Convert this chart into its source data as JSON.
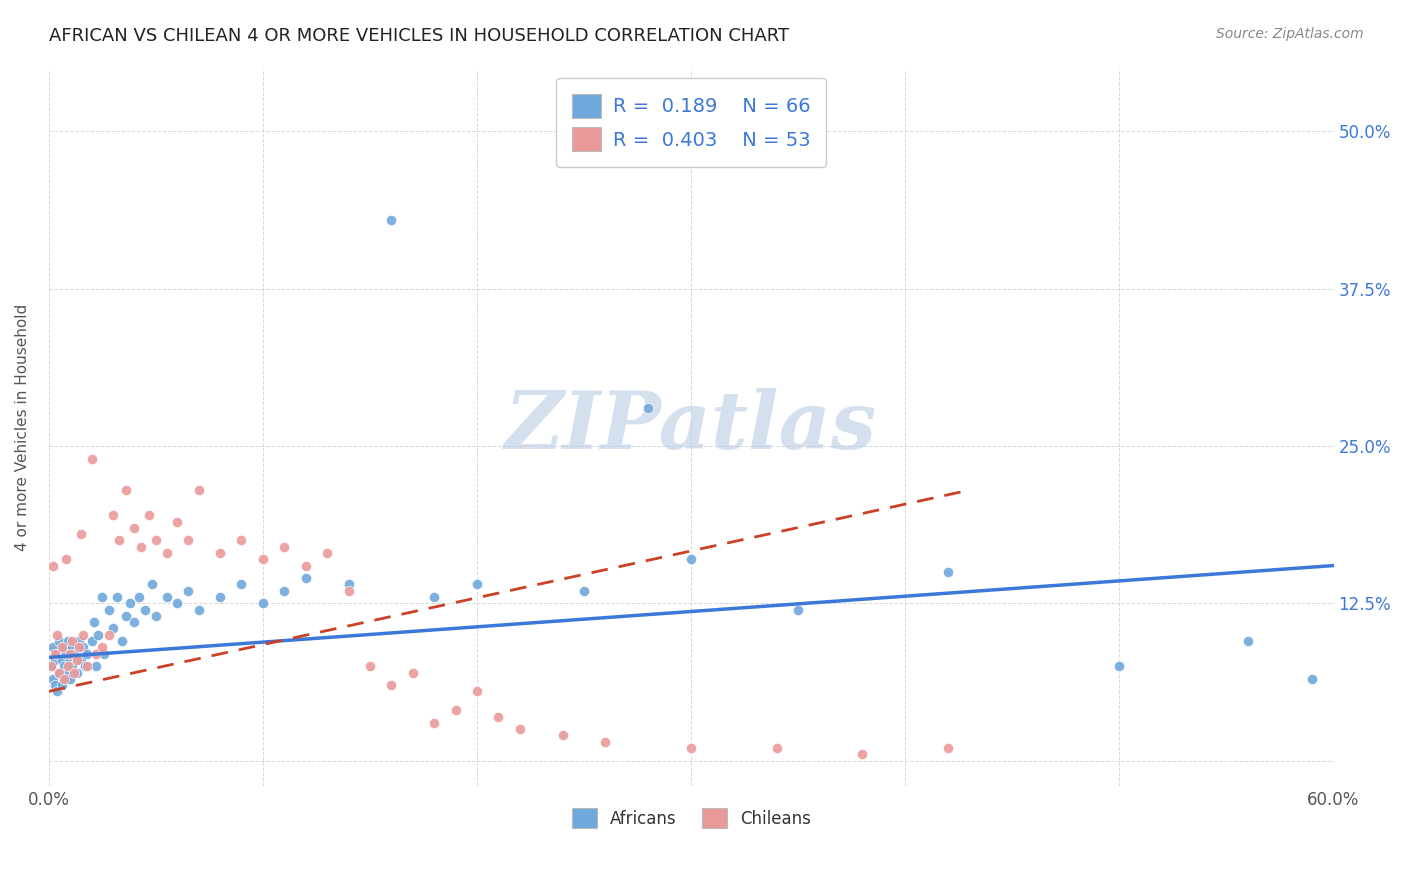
{
  "title": "AFRICAN VS CHILEAN 4 OR MORE VEHICLES IN HOUSEHOLD CORRELATION CHART",
  "source": "Source: ZipAtlas.com",
  "ylabel_text": "4 or more Vehicles in Household",
  "xlim": [
    0.0,
    0.6
  ],
  "ylim": [
    -0.02,
    0.55
  ],
  "x_ticks": [
    0.0,
    0.1,
    0.2,
    0.3,
    0.4,
    0.5,
    0.6
  ],
  "x_tick_labels": [
    "0.0%",
    "",
    "",
    "",
    "",
    "",
    "60.0%"
  ],
  "y_ticks": [
    0.0,
    0.125,
    0.25,
    0.375,
    0.5
  ],
  "y_tick_labels": [
    "",
    "12.5%",
    "25.0%",
    "37.5%",
    "50.0%"
  ],
  "blue_color": "#6fa8dc",
  "pink_color": "#ea9999",
  "blue_line_color": "#3c78d8",
  "pink_line_color": "#cc4125",
  "legend_text_color": "#3c78d8",
  "watermark_color": "#b8cce4",
  "R_african": 0.189,
  "N_african": 66,
  "R_chilean": 0.403,
  "N_chilean": 53,
  "african_x": [
    0.001,
    0.002,
    0.002,
    0.003,
    0.003,
    0.004,
    0.004,
    0.005,
    0.005,
    0.006,
    0.006,
    0.007,
    0.007,
    0.008,
    0.008,
    0.009,
    0.009,
    0.01,
    0.01,
    0.011,
    0.011,
    0.012,
    0.013,
    0.014,
    0.015,
    0.016,
    0.017,
    0.018,
    0.02,
    0.021,
    0.022,
    0.023,
    0.025,
    0.026,
    0.028,
    0.03,
    0.032,
    0.034,
    0.036,
    0.038,
    0.04,
    0.042,
    0.045,
    0.048,
    0.05,
    0.055,
    0.06,
    0.065,
    0.07,
    0.08,
    0.09,
    0.1,
    0.11,
    0.12,
    0.14,
    0.16,
    0.18,
    0.2,
    0.25,
    0.28,
    0.3,
    0.35,
    0.42,
    0.5,
    0.56,
    0.59
  ],
  "african_y": [
    0.075,
    0.09,
    0.065,
    0.08,
    0.06,
    0.085,
    0.055,
    0.095,
    0.07,
    0.08,
    0.06,
    0.09,
    0.075,
    0.085,
    0.065,
    0.095,
    0.07,
    0.08,
    0.065,
    0.09,
    0.075,
    0.085,
    0.07,
    0.095,
    0.08,
    0.09,
    0.075,
    0.085,
    0.095,
    0.11,
    0.075,
    0.1,
    0.13,
    0.085,
    0.12,
    0.105,
    0.13,
    0.095,
    0.115,
    0.125,
    0.11,
    0.13,
    0.12,
    0.14,
    0.115,
    0.13,
    0.125,
    0.135,
    0.12,
    0.13,
    0.14,
    0.125,
    0.135,
    0.145,
    0.14,
    0.43,
    0.13,
    0.14,
    0.135,
    0.28,
    0.16,
    0.12,
    0.15,
    0.075,
    0.095,
    0.065
  ],
  "chilean_x": [
    0.001,
    0.002,
    0.003,
    0.004,
    0.005,
    0.006,
    0.007,
    0.008,
    0.009,
    0.01,
    0.011,
    0.012,
    0.013,
    0.014,
    0.015,
    0.016,
    0.018,
    0.02,
    0.022,
    0.025,
    0.028,
    0.03,
    0.033,
    0.036,
    0.04,
    0.043,
    0.047,
    0.05,
    0.055,
    0.06,
    0.065,
    0.07,
    0.08,
    0.09,
    0.1,
    0.11,
    0.12,
    0.13,
    0.14,
    0.15,
    0.16,
    0.17,
    0.18,
    0.19,
    0.2,
    0.21,
    0.22,
    0.24,
    0.26,
    0.3,
    0.34,
    0.38,
    0.42
  ],
  "chilean_y": [
    0.075,
    0.155,
    0.085,
    0.1,
    0.07,
    0.09,
    0.065,
    0.16,
    0.075,
    0.085,
    0.095,
    0.07,
    0.08,
    0.09,
    0.18,
    0.1,
    0.075,
    0.24,
    0.085,
    0.09,
    0.1,
    0.195,
    0.175,
    0.215,
    0.185,
    0.17,
    0.195,
    0.175,
    0.165,
    0.19,
    0.175,
    0.215,
    0.165,
    0.175,
    0.16,
    0.17,
    0.155,
    0.165,
    0.135,
    0.075,
    0.06,
    0.07,
    0.03,
    0.04,
    0.055,
    0.035,
    0.025,
    0.02,
    0.015,
    0.01,
    0.01,
    0.005,
    0.01
  ],
  "blue_line_x": [
    0.0,
    0.6
  ],
  "blue_line_y": [
    0.082,
    0.155
  ],
  "pink_line_x": [
    0.0,
    0.43
  ],
  "pink_line_y": [
    0.055,
    0.215
  ]
}
